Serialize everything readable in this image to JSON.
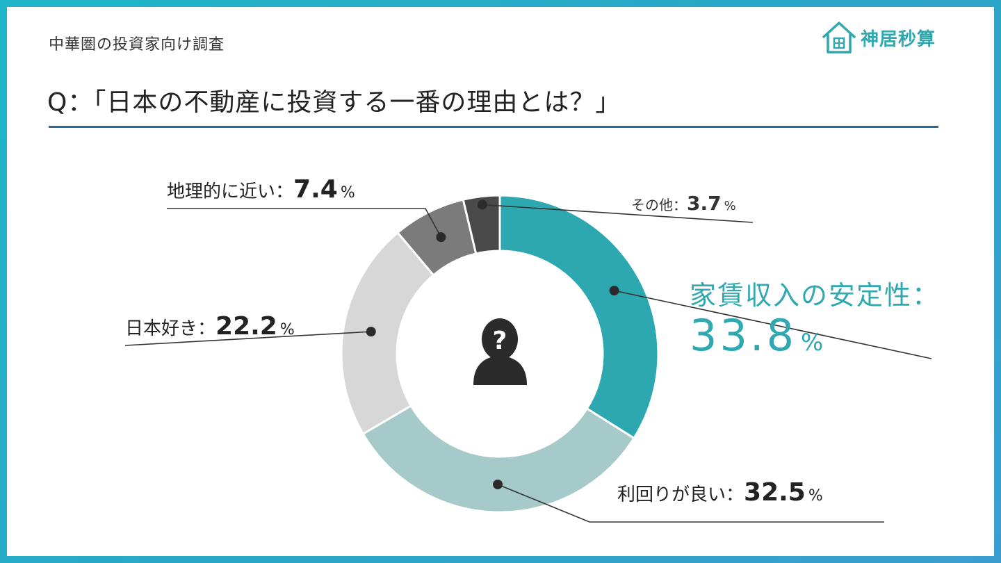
{
  "header": {
    "subtitle": "中華圏の投資家向け調査",
    "question": "Q：「日本の不動産に投資する一番の理由とは？」",
    "logo_text": "神居秒算",
    "logo_icon": "house-icon"
  },
  "center_icon": "person-question-icon",
  "colors": {
    "accent": "#2fa8b0",
    "rule": "#2e6a8c",
    "slices": [
      "#2ea8b0",
      "#a6c9ca",
      "#d8d7d8",
      "#7b7b7b",
      "#4a4a4a"
    ]
  },
  "chart_data": {
    "type": "pie",
    "donut": true,
    "title": "Q：「日本の不動産に投資する一番の理由とは？」",
    "start": "12 o'clock, clockwise",
    "slices": [
      {
        "label": "家賃収入の安定性",
        "value": 33.8,
        "value_text": "33.8",
        "unit": "%"
      },
      {
        "label": "利回りが良い",
        "value": 32.5,
        "value_text": "32.5",
        "unit": "%"
      },
      {
        "label": "日本好き",
        "value": 22.2,
        "value_text": "22.2",
        "unit": "%"
      },
      {
        "label": "地理的に近い",
        "value": 7.4,
        "value_text": "7.4",
        "unit": "%"
      },
      {
        "label": "その他",
        "value": 3.7,
        "value_text": "3.7",
        "unit": "%"
      }
    ]
  }
}
